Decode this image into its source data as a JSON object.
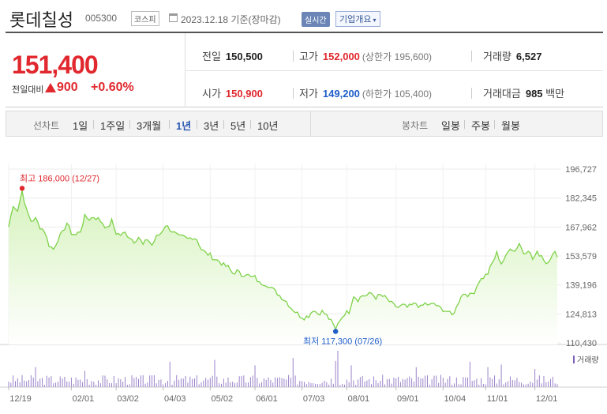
{
  "header": {
    "stock_name": "롯데칠성",
    "code": "005300",
    "market": "코스피",
    "date": "2023.12.18",
    "basis": "기준(장마감)",
    "realtime_label": "실시간",
    "corp_info_label": "기업개요"
  },
  "price": {
    "current": "151,400",
    "change_label": "전일대비",
    "change": "900",
    "change_pct": "+0.60%"
  },
  "stats": {
    "prev_close_label": "전일",
    "prev_close": "150,500",
    "high_label": "고가",
    "high": "152,000",
    "upper_limit_label": "(상한가",
    "upper_limit": "195,600)",
    "volume_label": "거래량",
    "volume": "6,527",
    "open_label": "시가",
    "open": "150,900",
    "low_label": "저가",
    "low": "149,200",
    "lower_limit_label": "(하한가",
    "lower_limit": "105,400)",
    "value_label": "거래대금",
    "value": "985",
    "value_unit": "백만"
  },
  "tabs": {
    "line_label": "선차트",
    "line_periods": [
      "1일",
      "1주일",
      "3개월",
      "1년",
      "3년",
      "5년",
      "10년"
    ],
    "active_period": "1년",
    "candle_label": "봉차트",
    "candle_periods": [
      "일봉",
      "주봉",
      "월봉"
    ]
  },
  "chart_data": {
    "type": "area",
    "y_ticks": [
      "196,727",
      "182,345",
      "167,962",
      "153,579",
      "139,196",
      "124,813",
      "110,430"
    ],
    "ylim": [
      110430,
      196727
    ],
    "x_ticks": [
      "12/19",
      "02/01",
      "03/02",
      "04/03",
      "05/02",
      "06/01",
      "07/03",
      "08/01",
      "09/01",
      "10/04",
      "11/01",
      "12/01"
    ],
    "x_tick_index": [
      0,
      28,
      48,
      69,
      90,
      110,
      131,
      151,
      173,
      194,
      213,
      235
    ],
    "n_points": 246,
    "high_annotation": "최고 186,000 (12/27)",
    "high_index": 6,
    "high_value": 186000,
    "low_annotation": "최저 117,300 (07/26)",
    "low_index": 146,
    "low_value": 117300,
    "volume_legend": "거래량",
    "fill_color": "#d6f2bd",
    "line_color": "#7fd24a",
    "marker_high_color": "#e0282e",
    "marker_low_color": "#1f5ec9",
    "price_knots": [
      [
        0,
        168000
      ],
      [
        2,
        179000
      ],
      [
        4,
        176000
      ],
      [
        6,
        186000
      ],
      [
        8,
        176000
      ],
      [
        10,
        171000
      ],
      [
        12,
        172000
      ],
      [
        14,
        168000
      ],
      [
        16,
        166000
      ],
      [
        18,
        159000
      ],
      [
        20,
        157000
      ],
      [
        22,
        162000
      ],
      [
        24,
        165000
      ],
      [
        26,
        170000
      ],
      [
        28,
        165000
      ],
      [
        30,
        164000
      ],
      [
        32,
        166000
      ],
      [
        34,
        173000
      ],
      [
        36,
        172000
      ],
      [
        38,
        173000
      ],
      [
        40,
        172000
      ],
      [
        42,
        170000
      ],
      [
        44,
        167000
      ],
      [
        46,
        171000
      ],
      [
        48,
        165000
      ],
      [
        50,
        164000
      ],
      [
        52,
        165000
      ],
      [
        54,
        163000
      ],
      [
        56,
        161000
      ],
      [
        58,
        163000
      ],
      [
        60,
        159000
      ],
      [
        62,
        162000
      ],
      [
        64,
        159000
      ],
      [
        66,
        163000
      ],
      [
        68,
        165000
      ],
      [
        70,
        169000
      ],
      [
        72,
        167000
      ],
      [
        74,
        165000
      ],
      [
        76,
        163000
      ],
      [
        78,
        163000
      ],
      [
        80,
        162000
      ],
      [
        82,
        163000
      ],
      [
        84,
        162000
      ],
      [
        86,
        157000
      ],
      [
        88,
        155000
      ],
      [
        90,
        154000
      ],
      [
        92,
        152000
      ],
      [
        94,
        151000
      ],
      [
        96,
        149000
      ],
      [
        98,
        148000
      ],
      [
        100,
        145000
      ],
      [
        102,
        146000
      ],
      [
        104,
        144000
      ],
      [
        106,
        145000
      ],
      [
        108,
        143000
      ],
      [
        110,
        143000
      ],
      [
        112,
        140000
      ],
      [
        114,
        140000
      ],
      [
        116,
        139000
      ],
      [
        118,
        137000
      ],
      [
        120,
        135000
      ],
      [
        122,
        133000
      ],
      [
        124,
        131000
      ],
      [
        126,
        128000
      ],
      [
        128,
        126000
      ],
      [
        130,
        124000
      ],
      [
        132,
        123000
      ],
      [
        134,
        124000
      ],
      [
        136,
        127000
      ],
      [
        138,
        125000
      ],
      [
        140,
        126000
      ],
      [
        142,
        124000
      ],
      [
        144,
        121000
      ],
      [
        146,
        117300
      ],
      [
        148,
        122000
      ],
      [
        150,
        125000
      ],
      [
        152,
        126000
      ],
      [
        154,
        134000
      ],
      [
        156,
        132000
      ],
      [
        158,
        134000
      ],
      [
        160,
        134000
      ],
      [
        162,
        135000
      ],
      [
        164,
        133000
      ],
      [
        166,
        134000
      ],
      [
        168,
        133000
      ],
      [
        170,
        131000
      ],
      [
        172,
        129000
      ],
      [
        174,
        128000
      ],
      [
        176,
        129000
      ],
      [
        178,
        128000
      ],
      [
        180,
        129000
      ],
      [
        182,
        130000
      ],
      [
        184,
        128000
      ],
      [
        186,
        130000
      ],
      [
        188,
        129000
      ],
      [
        190,
        130000
      ],
      [
        192,
        128000
      ],
      [
        194,
        127000
      ],
      [
        196,
        126000
      ],
      [
        198,
        124000
      ],
      [
        200,
        128000
      ],
      [
        202,
        134000
      ],
      [
        204,
        135000
      ],
      [
        206,
        134000
      ],
      [
        208,
        136000
      ],
      [
        210,
        141000
      ],
      [
        212,
        143000
      ],
      [
        214,
        145000
      ],
      [
        216,
        150000
      ],
      [
        218,
        155000
      ],
      [
        220,
        150000
      ],
      [
        222,
        153000
      ],
      [
        224,
        158000
      ],
      [
        226,
        156000
      ],
      [
        228,
        160000
      ],
      [
        230,
        155000
      ],
      [
        232,
        157000
      ],
      [
        234,
        152000
      ],
      [
        236,
        155000
      ],
      [
        238,
        154000
      ],
      [
        240,
        150000
      ],
      [
        242,
        153000
      ],
      [
        244,
        155000
      ],
      [
        245,
        154000
      ]
    ],
    "volume_spikes": [
      [
        12,
        0.55
      ],
      [
        34,
        0.45
      ],
      [
        72,
        0.7
      ],
      [
        92,
        0.75
      ],
      [
        110,
        0.6
      ],
      [
        127,
        0.8
      ],
      [
        146,
        0.72
      ],
      [
        147,
        1.0
      ],
      [
        153,
        0.6
      ],
      [
        182,
        0.55
      ],
      [
        206,
        0.7
      ],
      [
        214,
        0.55
      ],
      [
        220,
        0.62
      ],
      [
        235,
        0.5
      ]
    ]
  }
}
